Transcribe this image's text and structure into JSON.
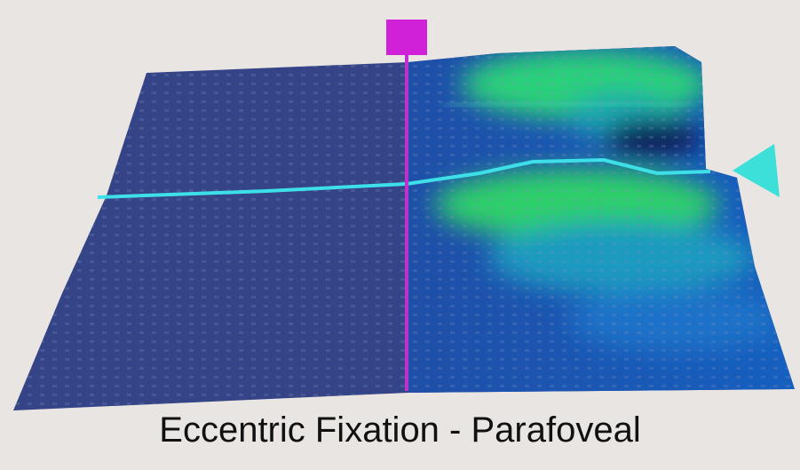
{
  "caption": "Eccentric Fixation - Parafoveal"
}
